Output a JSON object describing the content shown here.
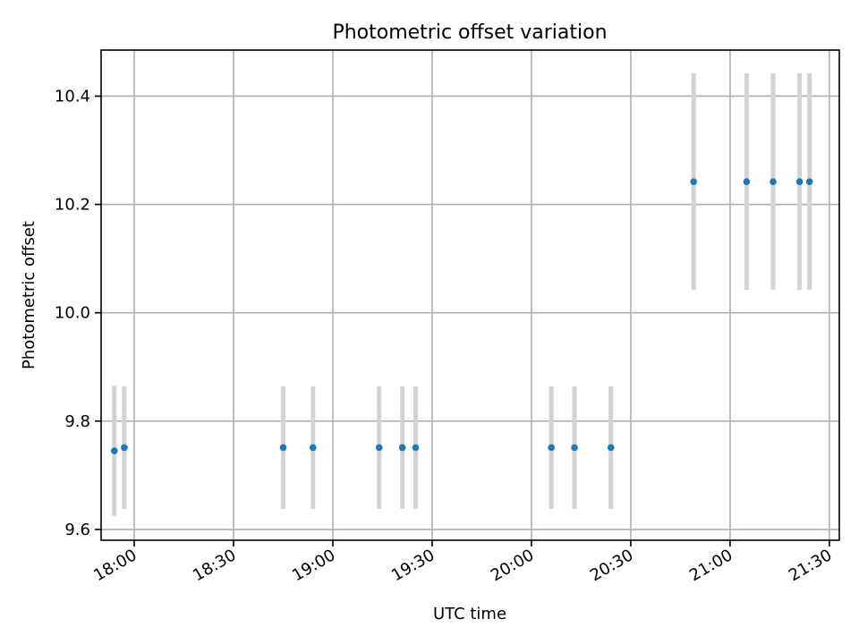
{
  "chart_data": {
    "type": "scatter",
    "title": "Photometric offset variation",
    "xlabel": "UTC time",
    "ylabel": "Photometric offset",
    "x_is_time": true,
    "xlim": [
      "17:50",
      "21:33"
    ],
    "ylim": [
      9.58,
      10.485
    ],
    "xticks": [
      "18:00",
      "18:30",
      "19:00",
      "19:30",
      "20:00",
      "20:30",
      "21:00",
      "21:30"
    ],
    "yticks": [
      9.6,
      9.8,
      10.0,
      10.2,
      10.4
    ],
    "ytick_labels": [
      "9.6",
      "9.8",
      "10.0",
      "10.2",
      "10.4"
    ],
    "grid": true,
    "point_color": "#1f77b4",
    "errorbar_color": "#d3d3d3",
    "points": [
      {
        "x": "17:54",
        "y": 9.745,
        "yerr": 0.12
      },
      {
        "x": "17:57",
        "y": 9.751,
        "yerr": 0.113
      },
      {
        "x": "18:45",
        "y": 9.751,
        "yerr": 0.113
      },
      {
        "x": "18:54",
        "y": 9.751,
        "yerr": 0.113
      },
      {
        "x": "19:14",
        "y": 9.751,
        "yerr": 0.113
      },
      {
        "x": "19:21",
        "y": 9.751,
        "yerr": 0.113
      },
      {
        "x": "19:25",
        "y": 9.751,
        "yerr": 0.113
      },
      {
        "x": "20:06",
        "y": 9.751,
        "yerr": 0.113
      },
      {
        "x": "20:13",
        "y": 9.751,
        "yerr": 0.113
      },
      {
        "x": "20:24",
        "y": 9.751,
        "yerr": 0.113
      },
      {
        "x": "20:49",
        "y": 10.242,
        "yerr": 0.2
      },
      {
        "x": "21:05",
        "y": 10.242,
        "yerr": 0.2
      },
      {
        "x": "21:13",
        "y": 10.242,
        "yerr": 0.2
      },
      {
        "x": "21:21",
        "y": 10.242,
        "yerr": 0.2
      },
      {
        "x": "21:24",
        "y": 10.242,
        "yerr": 0.2
      }
    ]
  }
}
